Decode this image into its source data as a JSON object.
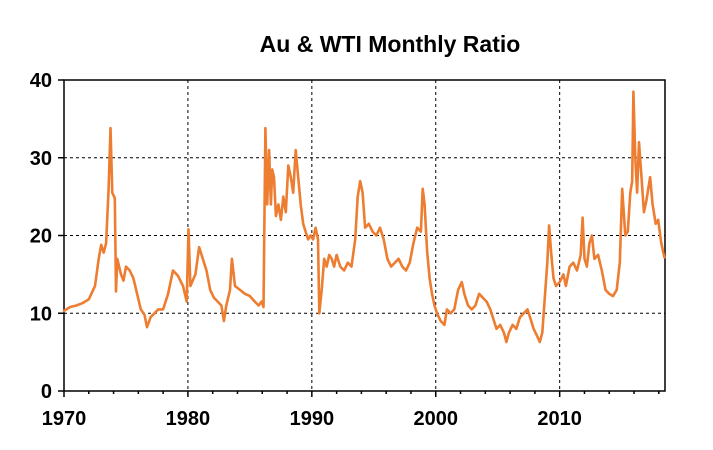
{
  "chart_data": {
    "type": "line",
    "title": "Au  &  WTI  Monthly  Ratio",
    "xlabel": "",
    "ylabel": "",
    "xlim": [
      1970,
      2018.5
    ],
    "ylim": [
      0,
      40
    ],
    "x_ticks": [
      1970,
      1980,
      1990,
      2000,
      2010
    ],
    "y_ticks": [
      0,
      10,
      20,
      30,
      40
    ],
    "grid": true,
    "legend": "none",
    "series": [
      {
        "color": "#ED7D31",
        "points": [
          [
            1970.0,
            10.3
          ],
          [
            1970.5,
            10.8
          ],
          [
            1971.0,
            11.0
          ],
          [
            1971.5,
            11.3
          ],
          [
            1972.0,
            11.8
          ],
          [
            1972.5,
            13.5
          ],
          [
            1972.8,
            17.0
          ],
          [
            1973.0,
            18.8
          ],
          [
            1973.2,
            17.8
          ],
          [
            1973.4,
            19.0
          ],
          [
            1973.6,
            26.0
          ],
          [
            1973.75,
            33.8
          ],
          [
            1973.9,
            25.5
          ],
          [
            1974.1,
            24.8
          ],
          [
            1974.2,
            12.8
          ],
          [
            1974.3,
            17.0
          ],
          [
            1974.6,
            15.0
          ],
          [
            1974.8,
            14.2
          ],
          [
            1975.0,
            16.0
          ],
          [
            1975.3,
            15.5
          ],
          [
            1975.6,
            14.5
          ],
          [
            1975.9,
            12.5
          ],
          [
            1976.2,
            10.5
          ],
          [
            1976.5,
            9.8
          ],
          [
            1976.7,
            8.2
          ],
          [
            1977.0,
            9.5
          ],
          [
            1977.3,
            10.0
          ],
          [
            1977.6,
            10.5
          ],
          [
            1978.0,
            10.5
          ],
          [
            1978.4,
            12.5
          ],
          [
            1978.8,
            15.5
          ],
          [
            1979.2,
            14.8
          ],
          [
            1979.6,
            13.5
          ],
          [
            1979.9,
            11.5
          ],
          [
            1980.05,
            20.8
          ],
          [
            1980.2,
            13.5
          ],
          [
            1980.6,
            15.0
          ],
          [
            1980.9,
            18.5
          ],
          [
            1981.2,
            17.0
          ],
          [
            1981.5,
            15.5
          ],
          [
            1981.8,
            13.0
          ],
          [
            1982.1,
            12.0
          ],
          [
            1982.4,
            11.5
          ],
          [
            1982.7,
            11.0
          ],
          [
            1982.9,
            9.0
          ],
          [
            1983.1,
            11.0
          ],
          [
            1983.4,
            13.0
          ],
          [
            1983.55,
            17.0
          ],
          [
            1983.8,
            13.5
          ],
          [
            1984.2,
            13.0
          ],
          [
            1984.6,
            12.5
          ],
          [
            1985.0,
            12.2
          ],
          [
            1985.4,
            11.5
          ],
          [
            1985.7,
            11.0
          ],
          [
            1985.95,
            11.5
          ],
          [
            1986.1,
            10.8
          ],
          [
            1986.25,
            33.8
          ],
          [
            1986.4,
            24.0
          ],
          [
            1986.55,
            31.0
          ],
          [
            1986.7,
            24.0
          ],
          [
            1986.8,
            28.5
          ],
          [
            1986.95,
            27.5
          ],
          [
            1987.1,
            22.5
          ],
          [
            1987.3,
            24.0
          ],
          [
            1987.5,
            22.0
          ],
          [
            1987.7,
            25.0
          ],
          [
            1987.9,
            23.0
          ],
          [
            1988.1,
            29.0
          ],
          [
            1988.3,
            27.5
          ],
          [
            1988.5,
            25.5
          ],
          [
            1988.7,
            31.0
          ],
          [
            1988.9,
            27.5
          ],
          [
            1989.1,
            24.0
          ],
          [
            1989.3,
            21.5
          ],
          [
            1989.5,
            20.5
          ],
          [
            1989.7,
            19.5
          ],
          [
            1989.9,
            20.0
          ],
          [
            1990.1,
            19.5
          ],
          [
            1990.3,
            21.0
          ],
          [
            1990.5,
            19.5
          ],
          [
            1990.6,
            10.0
          ],
          [
            1990.8,
            13.0
          ],
          [
            1991.0,
            17.0
          ],
          [
            1991.2,
            16.0
          ],
          [
            1991.4,
            17.5
          ],
          [
            1991.6,
            17.0
          ],
          [
            1991.8,
            16.0
          ],
          [
            1992.0,
            17.5
          ],
          [
            1992.3,
            16.0
          ],
          [
            1992.6,
            15.5
          ],
          [
            1992.9,
            16.5
          ],
          [
            1993.2,
            16.0
          ],
          [
            1993.5,
            19.5
          ],
          [
            1993.7,
            25.0
          ],
          [
            1993.9,
            27.0
          ],
          [
            1994.1,
            25.5
          ],
          [
            1994.3,
            21.0
          ],
          [
            1994.6,
            21.5
          ],
          [
            1994.9,
            20.5
          ],
          [
            1995.2,
            20.0
          ],
          [
            1995.5,
            21.0
          ],
          [
            1995.8,
            19.5
          ],
          [
            1996.1,
            17.0
          ],
          [
            1996.4,
            16.0
          ],
          [
            1996.7,
            16.5
          ],
          [
            1997.0,
            17.0
          ],
          [
            1997.3,
            16.0
          ],
          [
            1997.6,
            15.5
          ],
          [
            1997.9,
            16.5
          ],
          [
            1998.2,
            19.0
          ],
          [
            1998.5,
            21.0
          ],
          [
            1998.8,
            20.5
          ],
          [
            1998.95,
            26.0
          ],
          [
            1999.1,
            24.0
          ],
          [
            1999.3,
            18.0
          ],
          [
            1999.5,
            14.5
          ],
          [
            1999.7,
            12.5
          ],
          [
            1999.9,
            11.0
          ],
          [
            2000.1,
            10.0
          ],
          [
            2000.4,
            9.0
          ],
          [
            2000.7,
            8.5
          ],
          [
            2000.9,
            10.5
          ],
          [
            2001.2,
            10.0
          ],
          [
            2001.5,
            10.5
          ],
          [
            2001.8,
            13.0
          ],
          [
            2002.1,
            14.0
          ],
          [
            2002.3,
            12.5
          ],
          [
            2002.6,
            11.0
          ],
          [
            2002.9,
            10.5
          ],
          [
            2003.2,
            11.0
          ],
          [
            2003.5,
            12.5
          ],
          [
            2003.8,
            12.0
          ],
          [
            2004.1,
            11.5
          ],
          [
            2004.4,
            10.5
          ],
          [
            2004.7,
            9.0
          ],
          [
            2004.9,
            8.0
          ],
          [
            2005.2,
            8.5
          ],
          [
            2005.5,
            7.5
          ],
          [
            2005.7,
            6.3
          ],
          [
            2005.9,
            7.5
          ],
          [
            2006.2,
            8.5
          ],
          [
            2006.5,
            8.0
          ],
          [
            2006.8,
            9.5
          ],
          [
            2007.1,
            10.0
          ],
          [
            2007.4,
            10.5
          ],
          [
            2007.7,
            9.0
          ],
          [
            2007.9,
            8.0
          ],
          [
            2008.2,
            7.0
          ],
          [
            2008.4,
            6.3
          ],
          [
            2008.6,
            7.5
          ],
          [
            2008.8,
            12.0
          ],
          [
            2009.0,
            16.5
          ],
          [
            2009.15,
            21.3
          ],
          [
            2009.3,
            18.0
          ],
          [
            2009.5,
            14.5
          ],
          [
            2009.7,
            13.5
          ],
          [
            2010.0,
            14.0
          ],
          [
            2010.3,
            15.0
          ],
          [
            2010.5,
            13.5
          ],
          [
            2010.8,
            16.0
          ],
          [
            2011.1,
            16.5
          ],
          [
            2011.4,
            15.5
          ],
          [
            2011.7,
            17.5
          ],
          [
            2011.85,
            22.3
          ],
          [
            2012.0,
            17.0
          ],
          [
            2012.2,
            16.0
          ],
          [
            2012.4,
            19.0
          ],
          [
            2012.6,
            20.0
          ],
          [
            2012.8,
            17.0
          ],
          [
            2013.1,
            17.5
          ],
          [
            2013.4,
            15.5
          ],
          [
            2013.7,
            13.0
          ],
          [
            2014.0,
            12.5
          ],
          [
            2014.3,
            12.2
          ],
          [
            2014.6,
            13.0
          ],
          [
            2014.85,
            16.5
          ],
          [
            2015.05,
            26.0
          ],
          [
            2015.3,
            20.0
          ],
          [
            2015.5,
            20.5
          ],
          [
            2015.7,
            25.5
          ],
          [
            2015.85,
            27.0
          ],
          [
            2015.95,
            38.5
          ],
          [
            2016.1,
            30.0
          ],
          [
            2016.25,
            25.5
          ],
          [
            2016.4,
            32.0
          ],
          [
            2016.6,
            27.5
          ],
          [
            2016.8,
            23.0
          ],
          [
            2017.0,
            24.5
          ],
          [
            2017.3,
            27.5
          ],
          [
            2017.5,
            24.0
          ],
          [
            2017.75,
            21.5
          ],
          [
            2017.95,
            22.0
          ],
          [
            2018.2,
            19.0
          ],
          [
            2018.45,
            17.2
          ]
        ]
      }
    ]
  }
}
